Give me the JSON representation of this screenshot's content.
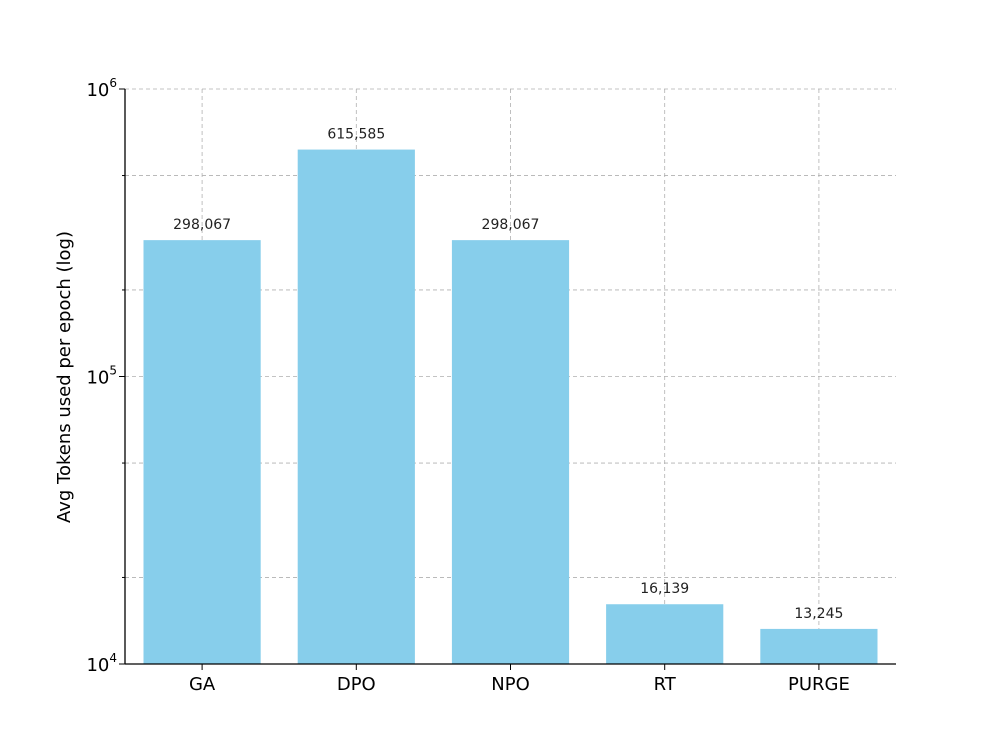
{
  "chart_data": {
    "type": "bar",
    "categories": [
      "GA",
      "DPO",
      "NPO",
      "RT",
      "PURGE"
    ],
    "values": [
      298067,
      615585,
      298067,
      16139,
      13245
    ],
    "value_labels": [
      "298,067",
      "615,585",
      "298,067",
      "16,139",
      "13,245"
    ],
    "ylabel": "Avg Tokens used per epoch (log)",
    "xlabel": "",
    "title": "",
    "yscale": "log",
    "ylim": [
      10000,
      1000000
    ],
    "major_ticks": [
      {
        "value": 10000,
        "base": "10",
        "exp": "4"
      },
      {
        "value": 100000,
        "base": "10",
        "exp": "5"
      },
      {
        "value": 1000000,
        "base": "10",
        "exp": "6"
      }
    ],
    "minor_gridlines": [
      20000,
      50000,
      200000,
      500000
    ],
    "grid": true,
    "bar_color": "#87CEEB"
  }
}
